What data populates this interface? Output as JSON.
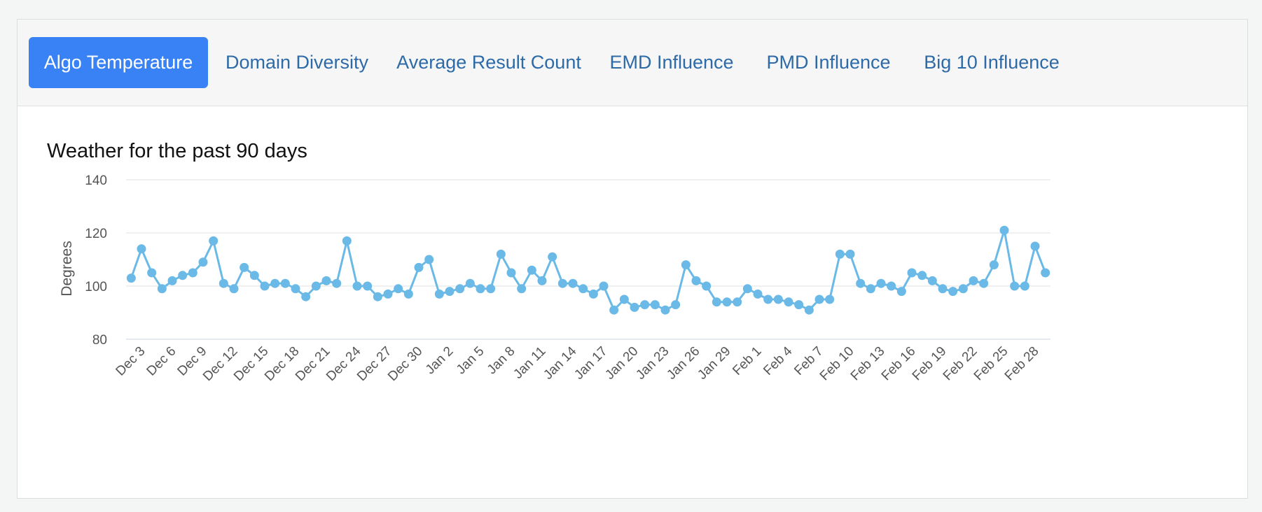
{
  "tabs": [
    {
      "label": "Algo Temperature",
      "active": true
    },
    {
      "label": "Domain Diversity",
      "active": false
    },
    {
      "label": "Average Result Count",
      "active": false
    },
    {
      "label": "EMD Influence",
      "active": false
    },
    {
      "label": "PMD Influence",
      "active": false
    },
    {
      "label": "Big 10 Influence",
      "active": false
    }
  ],
  "colors": {
    "accent": "#3882f6",
    "tab_text": "#2d6aa7",
    "series": "#6ab9e6",
    "grid": "#e0e0e0"
  },
  "chart_data": {
    "type": "line",
    "title": "Weather for the past 90 days",
    "ylabel": "Degrees",
    "xlabel": "",
    "ylim": [
      80,
      140
    ],
    "yticks": [
      80,
      100,
      120,
      140
    ],
    "grid": true,
    "x": [
      "Dec 2",
      "Dec 3",
      "Dec 4",
      "Dec 5",
      "Dec 6",
      "Dec 7",
      "Dec 8",
      "Dec 9",
      "Dec 10",
      "Dec 11",
      "Dec 12",
      "Dec 13",
      "Dec 14",
      "Dec 15",
      "Dec 16",
      "Dec 17",
      "Dec 18",
      "Dec 19",
      "Dec 20",
      "Dec 21",
      "Dec 22",
      "Dec 23",
      "Dec 24",
      "Dec 25",
      "Dec 26",
      "Dec 27",
      "Dec 28",
      "Dec 29",
      "Dec 30",
      "Dec 31",
      "Jan 1",
      "Jan 2",
      "Jan 3",
      "Jan 4",
      "Jan 5",
      "Jan 6",
      "Jan 7",
      "Jan 8",
      "Jan 9",
      "Jan 10",
      "Jan 11",
      "Jan 12",
      "Jan 13",
      "Jan 14",
      "Jan 15",
      "Jan 16",
      "Jan 17",
      "Jan 18",
      "Jan 19",
      "Jan 20",
      "Jan 21",
      "Jan 22",
      "Jan 23",
      "Jan 24",
      "Jan 25",
      "Jan 26",
      "Jan 27",
      "Jan 28",
      "Jan 29",
      "Jan 30",
      "Jan 31",
      "Feb 1",
      "Feb 2",
      "Feb 3",
      "Feb 4",
      "Feb 5",
      "Feb 6",
      "Feb 7",
      "Feb 8",
      "Feb 9",
      "Feb 10",
      "Feb 11",
      "Feb 12",
      "Feb 13",
      "Feb 14",
      "Feb 15",
      "Feb 16",
      "Feb 17",
      "Feb 18",
      "Feb 19",
      "Feb 20",
      "Feb 21",
      "Feb 22",
      "Feb 23",
      "Feb 24",
      "Feb 25",
      "Feb 26",
      "Feb 27",
      "Feb 28",
      "Mar 1"
    ],
    "x_tick_labels": [
      "Dec 3",
      "Dec 6",
      "Dec 9",
      "Dec 12",
      "Dec 15",
      "Dec 18",
      "Dec 21",
      "Dec 24",
      "Dec 27",
      "Dec 30",
      "Jan 2",
      "Jan 5",
      "Jan 8",
      "Jan 11",
      "Jan 14",
      "Jan 17",
      "Jan 20",
      "Jan 23",
      "Jan 26",
      "Jan 29",
      "Feb 1",
      "Feb 4",
      "Feb 7",
      "Feb 10",
      "Feb 13",
      "Feb 16",
      "Feb 19",
      "Feb 22",
      "Feb 25",
      "Feb 28"
    ],
    "series": [
      {
        "values": [
          103,
          114,
          105,
          99,
          102,
          104,
          105,
          109,
          117,
          101,
          99,
          107,
          104,
          100,
          101,
          101,
          99,
          96,
          100,
          102,
          101,
          117,
          100,
          100,
          96,
          97,
          99,
          97,
          107,
          110,
          97,
          98,
          99,
          101,
          99,
          99,
          112,
          105,
          99,
          106,
          102,
          111,
          101,
          101,
          99,
          97,
          100,
          91,
          95,
          92,
          93,
          93,
          91,
          93,
          108,
          102,
          100,
          94,
          94,
          94,
          99,
          97,
          95,
          95,
          94,
          93,
          91,
          95,
          95,
          112,
          112,
          101,
          99,
          101,
          100,
          98,
          105,
          104,
          102,
          99,
          98,
          99,
          102,
          101,
          108,
          121,
          100,
          100,
          115,
          105
        ]
      }
    ]
  }
}
